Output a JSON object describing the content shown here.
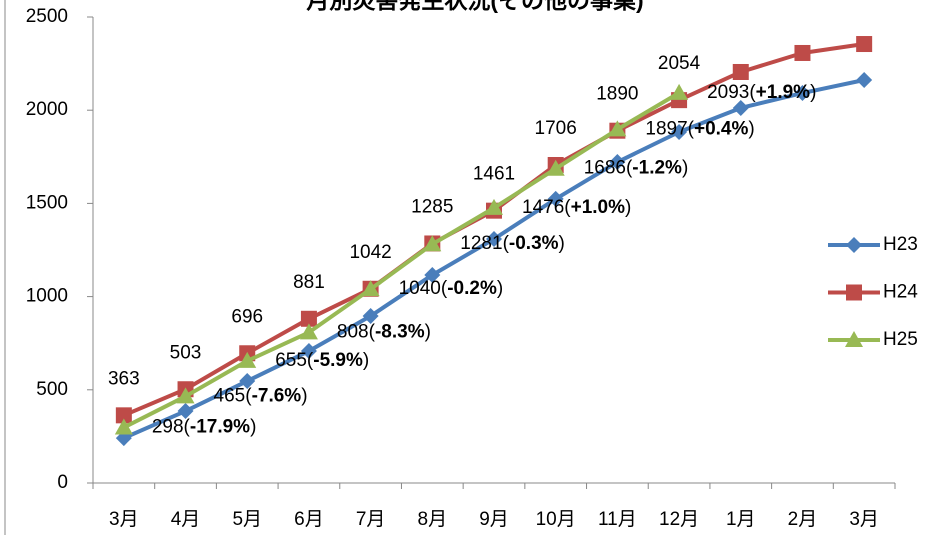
{
  "chart_data": {
    "type": "line",
    "title": "月別災害発生状況(その他の事業)",
    "categories": [
      "3月",
      "4月",
      "5月",
      "6月",
      "7月",
      "8月",
      "9月",
      "10月",
      "11月",
      "12月",
      "1月",
      "2月",
      "3月"
    ],
    "ylim": [
      0,
      2500
    ],
    "yticks": [
      0,
      500,
      1000,
      1500,
      2000,
      2500
    ],
    "grid": false,
    "legend": "right",
    "series": [
      {
        "name": "H23",
        "color": "#4a7ebb",
        "marker": "diamond",
        "values": [
          241,
          386,
          547,
          708,
          896,
          1116,
          1309,
          1524,
          1722,
          1883,
          2012,
          2092,
          2162
        ]
      },
      {
        "name": "H24",
        "color": "#be4b48",
        "marker": "square",
        "values": [
          363,
          503,
          696,
          881,
          1042,
          1285,
          1461,
          1706,
          1890,
          2054,
          2205,
          2307,
          2355
        ],
        "value_labels": [
          "363",
          "503",
          "696",
          "881",
          "1042",
          "1285",
          "1461",
          "1706",
          "1890",
          "2054",
          null,
          null,
          null
        ]
      },
      {
        "name": "H25",
        "color": "#98b954",
        "marker": "triangle",
        "values": [
          298,
          465,
          655,
          808,
          1040,
          1281,
          1476,
          1686,
          1897,
          2093,
          null,
          null,
          null
        ],
        "value_labels": [
          "298(-17.9%)",
          "465(-7.6%)",
          "655(-5.9%)",
          "808(-8.3%)",
          "1040(-0.2%)",
          "1281(-0.3%)",
          "1476(+1.0%)",
          "1686(-1.2%)",
          "1897(+0.4%)",
          "2093(+1.9%)",
          null,
          null,
          null
        ]
      }
    ]
  }
}
